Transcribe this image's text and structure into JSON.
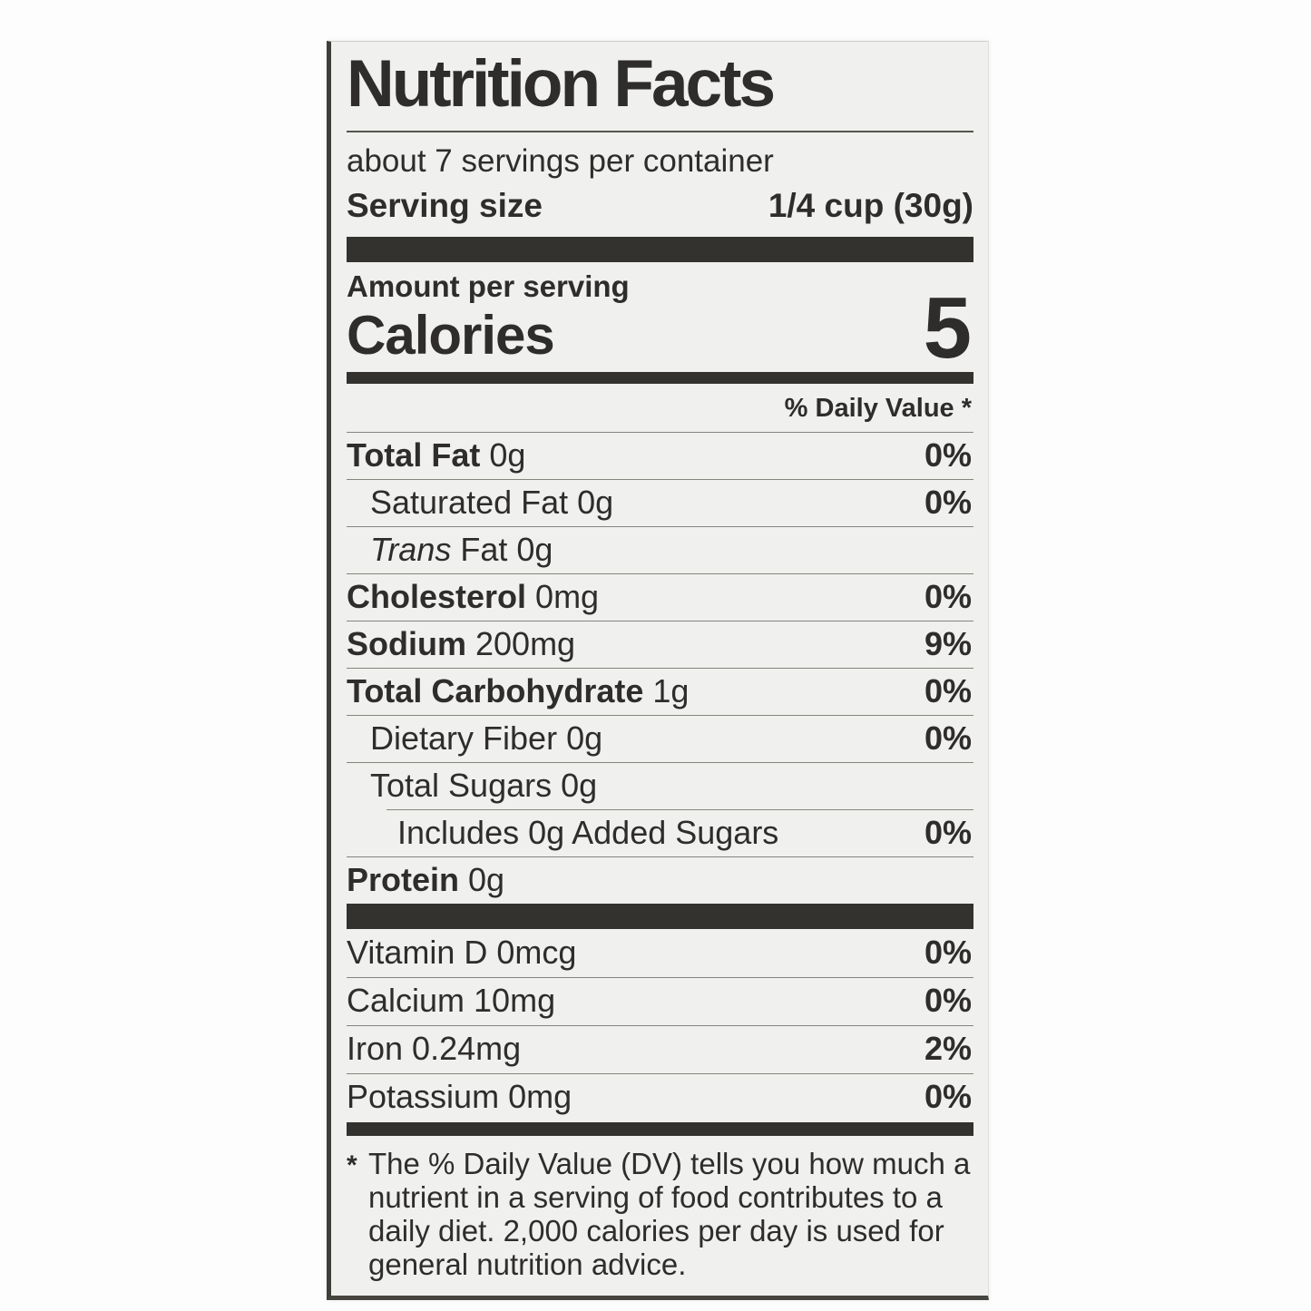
{
  "colors": {
    "paper": "#f0f0ee",
    "ink": "#2e2d2b",
    "bar": "#33322f",
    "hairline": "#85857f"
  },
  "label": {
    "title": "Nutrition Facts",
    "servings_per_container": "about 7 servings per container",
    "serving_size_label": "Serving size",
    "serving_size_value": "1/4 cup (30g)",
    "amount_per_serving": "Amount per serving",
    "calories_label": "Calories",
    "calories_value": "5",
    "daily_value_header": "% Daily Value *",
    "nutrients": [
      {
        "name": "Total Fat",
        "bold": true,
        "amount": "0g",
        "dv": "0%",
        "indent": 0
      },
      {
        "name": "Saturated Fat",
        "bold": false,
        "amount": "0g",
        "dv": "0%",
        "indent": 1
      },
      {
        "name": "Fat",
        "italic_prefix": "Trans",
        "bold": false,
        "amount": "0g",
        "dv": "",
        "indent": 1
      },
      {
        "name": "Cholesterol",
        "bold": true,
        "amount": "0mg",
        "dv": "0%",
        "indent": 0
      },
      {
        "name": "Sodium",
        "bold": true,
        "amount": "200mg",
        "dv": "9%",
        "indent": 0
      },
      {
        "name": "Total Carbohydrate",
        "bold": true,
        "amount": "1g",
        "dv": "0%",
        "indent": 0
      },
      {
        "name": "Dietary Fiber",
        "bold": false,
        "amount": "0g",
        "dv": "0%",
        "indent": 1
      },
      {
        "name": "Total Sugars",
        "bold": false,
        "amount": "0g",
        "dv": "",
        "indent": 1
      },
      {
        "name": "Includes 0g Added Sugars",
        "bold": false,
        "amount": "",
        "dv": "0%",
        "indent": 2,
        "rule_indent": true
      },
      {
        "name": "Protein",
        "bold": true,
        "amount": "0g",
        "dv": "",
        "indent": 0
      }
    ],
    "vitamins": [
      {
        "name": "Vitamin D",
        "amount": "0mcg",
        "dv": "0%"
      },
      {
        "name": "Calcium",
        "amount": "10mg",
        "dv": "0%"
      },
      {
        "name": "Iron",
        "amount": "0.24mg",
        "dv": "2%"
      },
      {
        "name": "Potassium",
        "amount": "0mg",
        "dv": "0%"
      }
    ],
    "footnote_marker": "*",
    "footnote_lines": [
      "The % Daily Value (DV) tells you how much a",
      "nutrient in a serving of food contributes to a",
      "daily diet. 2,000 calories per day is used for",
      "general nutrition advice."
    ]
  }
}
